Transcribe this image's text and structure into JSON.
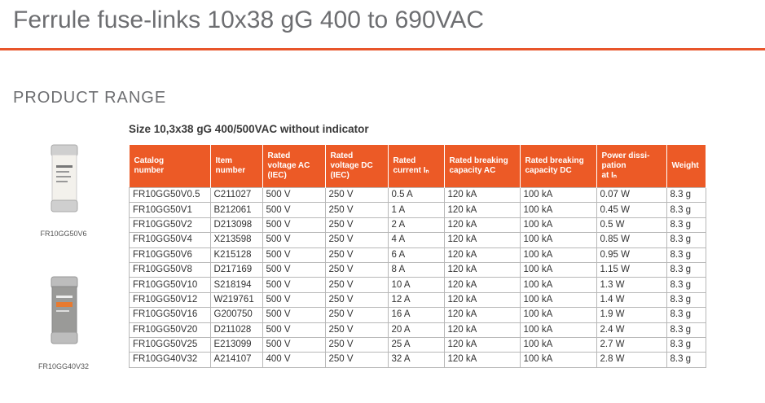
{
  "header": {
    "title": "Ferrule fuse-links 10x38 gG 400 to 690VAC"
  },
  "section": {
    "title": "PRODUCT RANGE"
  },
  "products": [
    {
      "label": "FR10GG50V6"
    },
    {
      "label": "FR10GG40V32"
    }
  ],
  "table": {
    "title": "Size 10,3x38 gG 400/500VAC without indicator",
    "headers": [
      [
        "Catalog",
        "number"
      ],
      [
        "Item",
        "number"
      ],
      [
        "Rated",
        "voltage AC",
        "(IEC)"
      ],
      [
        "Rated",
        "voltage DC",
        "(IEC)"
      ],
      [
        "Rated",
        "current Iₙ"
      ],
      [
        "Rated breaking",
        "capacity AC"
      ],
      [
        "Rated breaking",
        "capacity DC"
      ],
      [
        "Power dissi-",
        "pation",
        "at Iₙ"
      ],
      [
        "Weight"
      ]
    ],
    "rows": [
      [
        "FR10GG50V0.5",
        "C211027",
        "500 V",
        "250 V",
        "0.5 A",
        "120 kA",
        "100 kA",
        "0.07 W",
        "8.3 g"
      ],
      [
        "FR10GG50V1",
        "B212061",
        "500 V",
        "250 V",
        "1 A",
        "120 kA",
        "100 kA",
        "0.45 W",
        "8.3 g"
      ],
      [
        "FR10GG50V2",
        "D213098",
        "500 V",
        "250 V",
        "2 A",
        "120 kA",
        "100 kA",
        "0.5 W",
        "8.3 g"
      ],
      [
        "FR10GG50V4",
        "X213598",
        "500 V",
        "250 V",
        "4 A",
        "120 kA",
        "100 kA",
        "0.85 W",
        "8.3 g"
      ],
      [
        "FR10GG50V6",
        "K215128",
        "500 V",
        "250 V",
        "6 A",
        "120 kA",
        "100 kA",
        "0.95 W",
        "8.3 g"
      ],
      [
        "FR10GG50V8",
        "D217169",
        "500 V",
        "250 V",
        "8 A",
        "120 kA",
        "100 kA",
        "1.15 W",
        "8.3 g"
      ],
      [
        "FR10GG50V10",
        "S218194",
        "500 V",
        "250 V",
        "10 A",
        "120 kA",
        "100 kA",
        "1.3 W",
        "8.3 g"
      ],
      [
        "FR10GG50V12",
        "W219761",
        "500 V",
        "250 V",
        "12 A",
        "120 kA",
        "100 kA",
        "1.4 W",
        "8.3 g"
      ],
      [
        "FR10GG50V16",
        "G200750",
        "500 V",
        "250 V",
        "16 A",
        "120 kA",
        "100 kA",
        "1.9 W",
        "8.3 g"
      ],
      [
        "FR10GG50V20",
        "D211028",
        "500 V",
        "250 V",
        "20 A",
        "120 kA",
        "100 kA",
        "2.4 W",
        "8.3 g"
      ],
      [
        "FR10GG50V25",
        "E213099",
        "500 V",
        "250 V",
        "25 A",
        "120 kA",
        "100 kA",
        "2.7 W",
        "8.3 g"
      ],
      [
        "FR10GG40V32",
        "A214107",
        "400 V",
        "250 V",
        "32 A",
        "120 kA",
        "100 kA",
        "2.8 W",
        "8.3 g"
      ]
    ]
  }
}
